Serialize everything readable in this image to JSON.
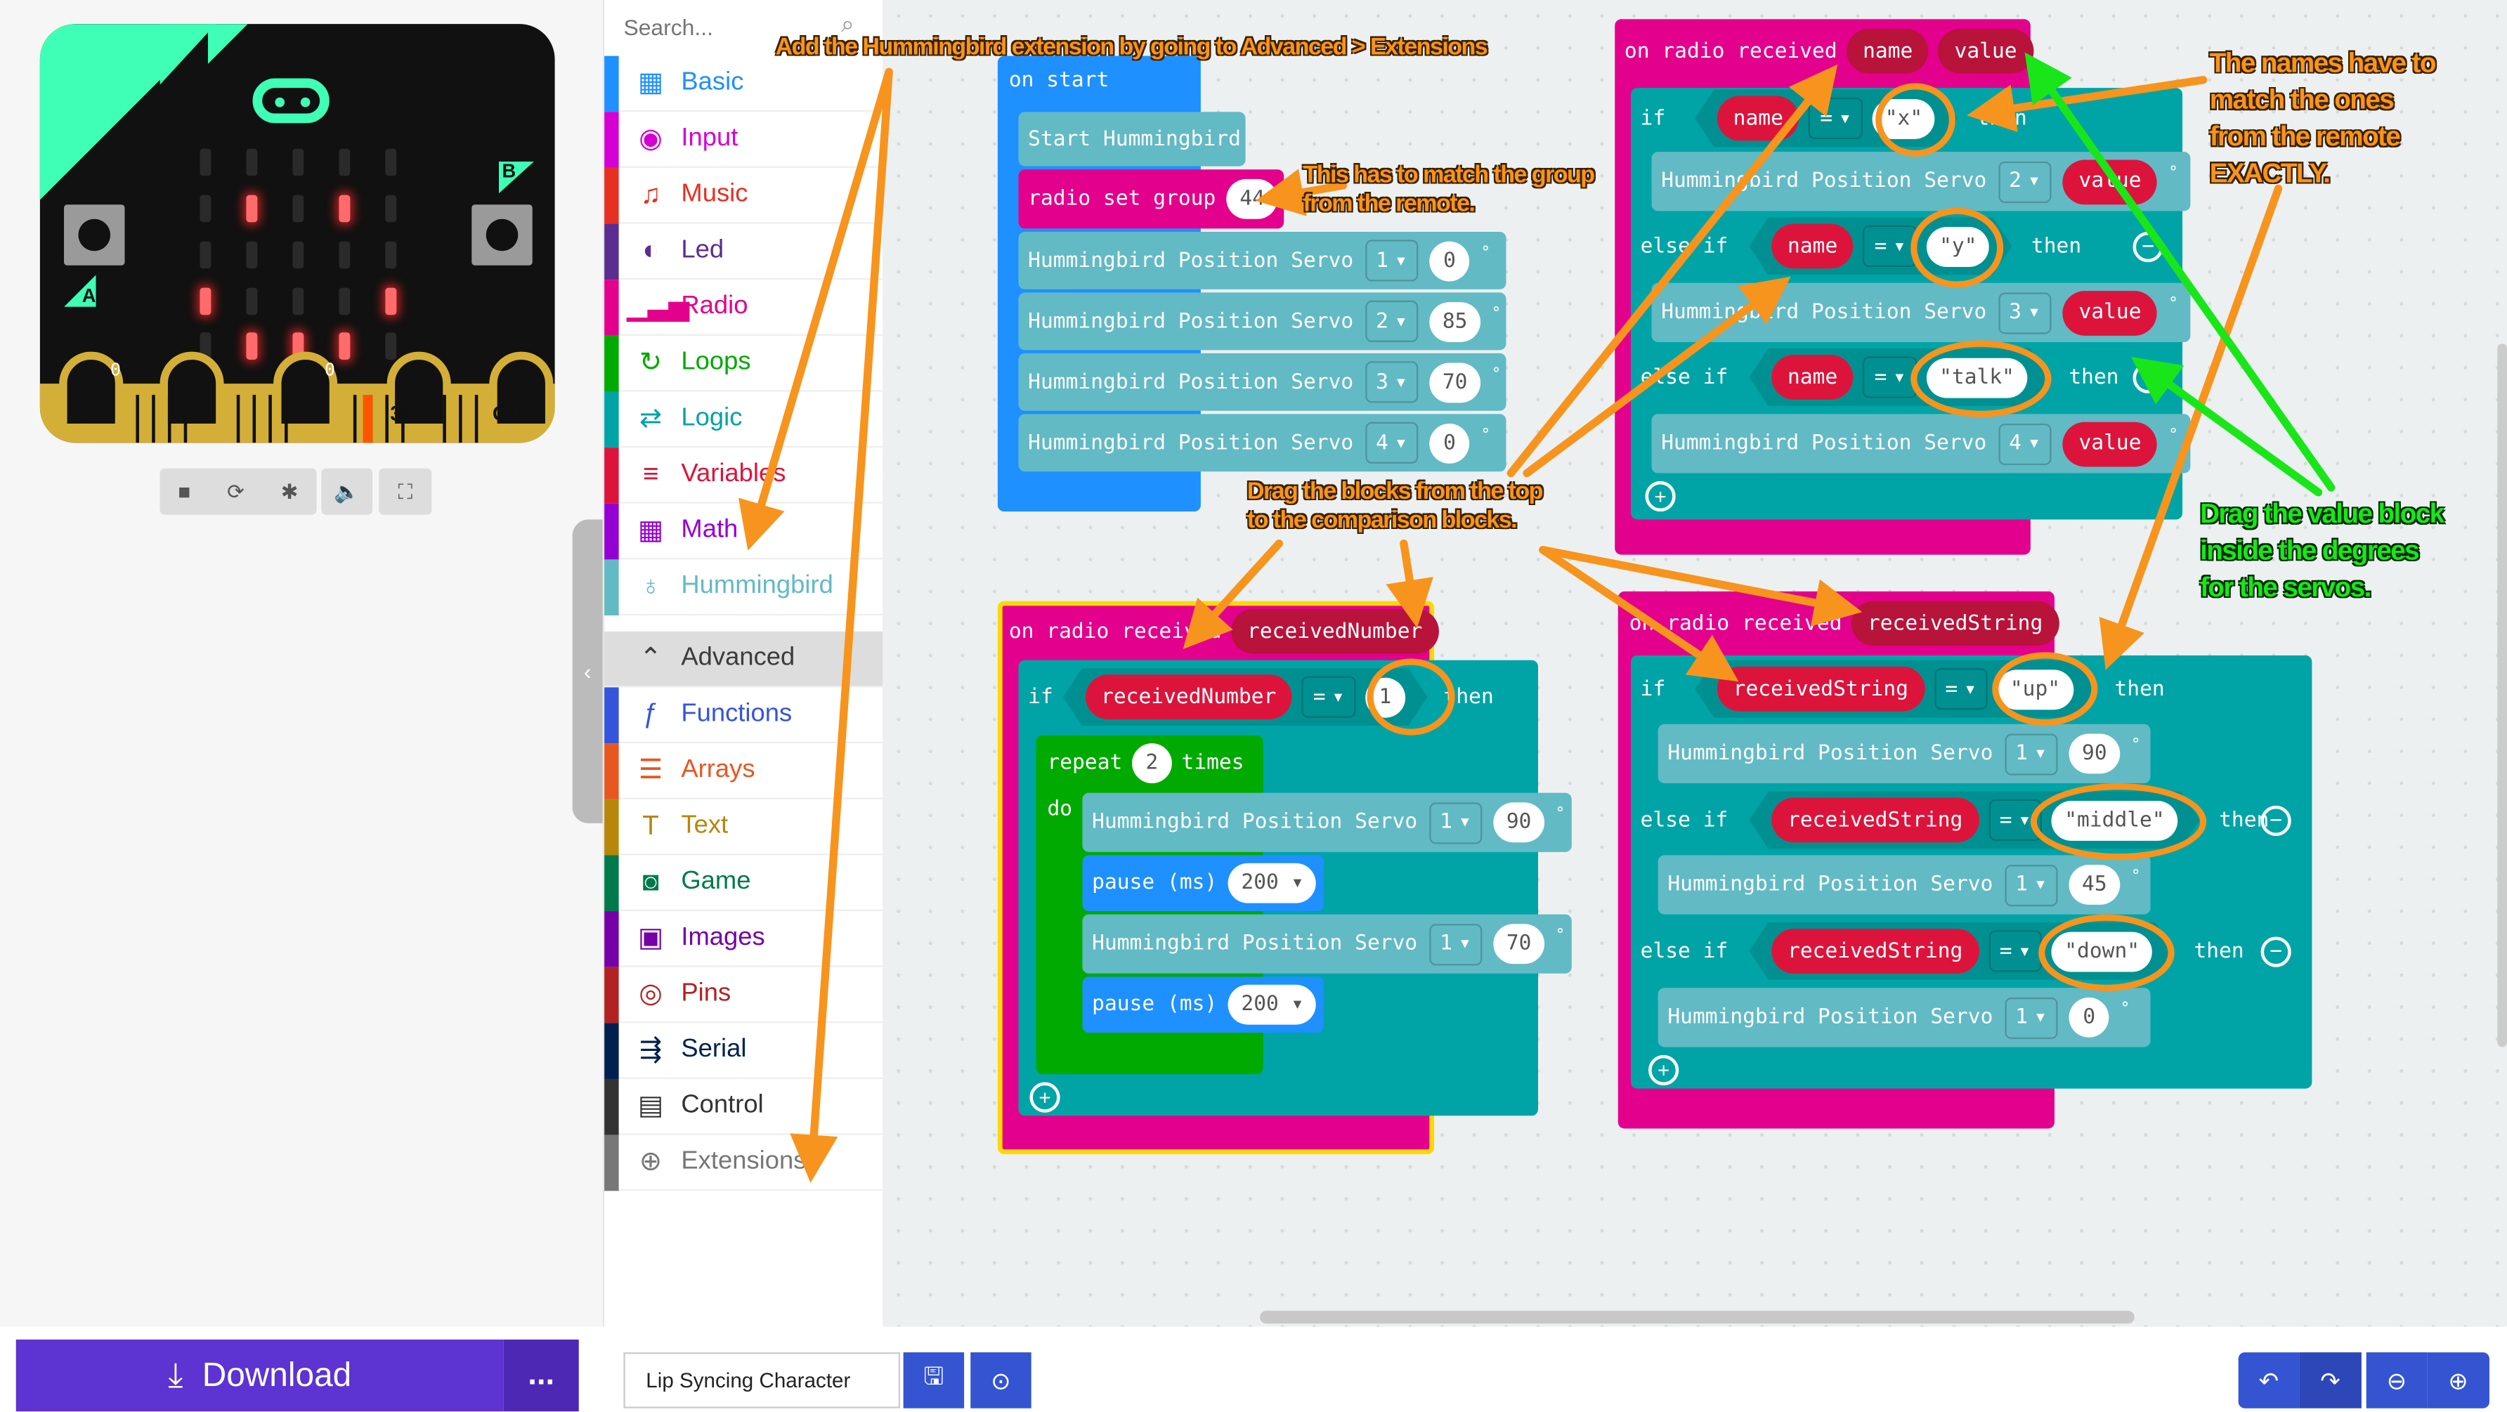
{
  "simulator": {
    "button_a": "A",
    "button_b": "B",
    "pins": [
      "0",
      "1",
      "2",
      "3V",
      "GND"
    ],
    "pin_values": [
      "0",
      "0"
    ],
    "controls": [
      {
        "icon": "stop-icon",
        "glyph": "■"
      },
      {
        "icon": "restart-icon",
        "glyph": "⟳"
      },
      {
        "icon": "debug-icon",
        "glyph": "✱"
      },
      {
        "icon": "sound-icon",
        "glyph": "🔈"
      },
      {
        "icon": "fullscreen-icon",
        "glyph": "⛶"
      }
    ],
    "leds_lit": [
      [
        1,
        1
      ],
      [
        1,
        3
      ],
      [
        3,
        0
      ],
      [
        3,
        4
      ],
      [
        4,
        1
      ],
      [
        4,
        2
      ],
      [
        4,
        3
      ]
    ]
  },
  "toolbox": {
    "search_placeholder": "Search...",
    "categories": [
      {
        "label": "Basic",
        "color": "#1e90ff",
        "icon": "grid-icon",
        "glyph": "▦"
      },
      {
        "label": "Input",
        "color": "#d400d4",
        "icon": "target-icon",
        "glyph": "◉"
      },
      {
        "label": "Music",
        "color": "#e63022",
        "icon": "headphones-icon",
        "glyph": "♫"
      },
      {
        "label": "Led",
        "color": "#5c2d91",
        "icon": "toggle-icon",
        "glyph": "◐"
      },
      {
        "label": "Radio",
        "color": "#e3008c",
        "icon": "signal-icon",
        "glyph": "▁▃▅"
      },
      {
        "label": "Loops",
        "color": "#00aa00",
        "icon": "refresh-icon",
        "glyph": "↻"
      },
      {
        "label": "Logic",
        "color": "#00a4a6",
        "icon": "shuffle-icon",
        "glyph": "⇄"
      },
      {
        "label": "Variables",
        "color": "#dc143c",
        "icon": "list-icon",
        "glyph": "≡"
      },
      {
        "label": "Math",
        "color": "#9400d3",
        "icon": "calculator-icon",
        "glyph": "▦"
      },
      {
        "label": "Hummingbird",
        "color": "#62bac5",
        "icon": "lightbulb-icon",
        "glyph": "♁"
      },
      {
        "label": "Advanced",
        "color": "#3c3c3c",
        "icon": "chevron-up-icon",
        "glyph": "⌃"
      },
      {
        "label": "Functions",
        "color": "#3455db",
        "icon": "function-icon",
        "glyph": "ƒ"
      },
      {
        "label": "Arrays",
        "color": "#e65722",
        "icon": "arrays-icon",
        "glyph": "☰"
      },
      {
        "label": "Text",
        "color": "#b8860b",
        "icon": "text-icon",
        "glyph": "T"
      },
      {
        "label": "Game",
        "color": "#007a4b",
        "icon": "gamepad-icon",
        "glyph": "◙"
      },
      {
        "label": "Images",
        "color": "#7600a8",
        "icon": "image-icon",
        "glyph": "▣"
      },
      {
        "label": "Pins",
        "color": "#b22222",
        "icon": "pins-icon",
        "glyph": "◎"
      },
      {
        "label": "Serial",
        "color": "#002050",
        "icon": "usb-icon",
        "glyph": "⇶"
      },
      {
        "label": "Control",
        "color": "#333333",
        "icon": "control-icon",
        "glyph": "▤"
      },
      {
        "label": "Extensions",
        "color": "#777777",
        "icon": "plus-circle-icon",
        "glyph": "⊕"
      }
    ]
  },
  "colors": {
    "basic": "#1e90ff",
    "radio": "#e3008c",
    "logic": "#00a4a6",
    "loops": "#00aa00",
    "hummingbird": "#62bac5",
    "variable": "#dc143c",
    "annotation_orange": "#f7941d",
    "annotation_green": "#19e619",
    "download": "#5d33d1"
  },
  "blocks": {
    "on_start": {
      "title": "on start",
      "start": "Start Hummingbird",
      "radio_group_label": "radio set group",
      "radio_group": "44",
      "servo_label": "Hummingbird Position Servo",
      "servos": [
        {
          "port": "1",
          "angle": "0"
        },
        {
          "port": "2",
          "angle": "85"
        },
        {
          "port": "3",
          "angle": "70"
        },
        {
          "port": "4",
          "angle": "0"
        }
      ]
    },
    "on_received_value": {
      "title": "on radio received",
      "param1": "name",
      "param2": "value",
      "if": "if",
      "else_if": "else if",
      "then": "then",
      "eq": "=",
      "servo_label": "Hummingbird Position Servo",
      "branches": [
        {
          "key": "\"x\"",
          "port": "2"
        },
        {
          "key": "\"y\"",
          "port": "3"
        },
        {
          "key": "\"talk\"",
          "port": "4"
        }
      ]
    },
    "on_received_number": {
      "title": "on radio received",
      "param": "receivedNumber",
      "if": "if",
      "then": "then",
      "eq": "=",
      "compare": "1",
      "repeat": "repeat",
      "times_value": "2",
      "times": "times",
      "do": "do",
      "servo_label": "Hummingbird Position Servo",
      "pause_label": "pause (ms)",
      "steps": [
        {
          "port": "1",
          "angle": "90",
          "pause": "200"
        },
        {
          "port": "1",
          "angle": "70",
          "pause": "200"
        }
      ]
    },
    "on_received_string": {
      "title": "on radio received",
      "param": "receivedString",
      "if": "if",
      "else_if": "else if",
      "then": "then",
      "eq": "=",
      "servo_label": "Hummingbird Position Servo",
      "branches": [
        {
          "key": "\"up\"",
          "port": "1",
          "angle": "90"
        },
        {
          "key": "\"middle\"",
          "port": "1",
          "angle": "45"
        },
        {
          "key": "\"down\"",
          "port": "1",
          "angle": "0"
        }
      ]
    }
  },
  "annotations": {
    "extension": "Add the Hummingbird extension by going to Advanced > Extensions",
    "group": [
      "This has to match the group",
      "from the remote."
    ],
    "drag_blocks": [
      "Drag the blocks from the top",
      "to the comparison blocks."
    ],
    "names": [
      "The names have to",
      "match the ones",
      "from the remote",
      "EXACTLY."
    ],
    "drag_value": [
      "Drag the value block",
      "inside the degrees",
      "for the servos."
    ]
  },
  "bottom": {
    "download": "Download",
    "more": "...",
    "project_name": "Lip Syncing Character",
    "save_icon": "save-icon",
    "github_icon": "github-icon"
  }
}
